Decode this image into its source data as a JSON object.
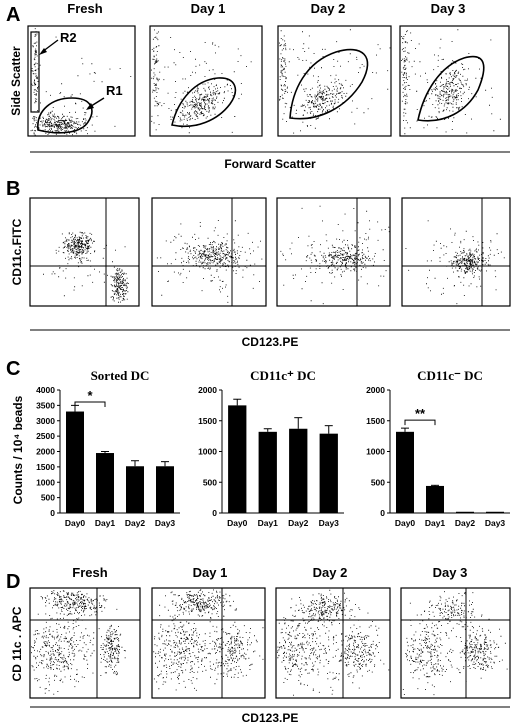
{
  "panels": {
    "A": {
      "label": "A",
      "titles": [
        "Fresh",
        "Day 1",
        "Day 2",
        "Day 3"
      ],
      "ylabel": "Side Scatter",
      "xlabel": "Forward Scatter",
      "annotations": {
        "r1": "R1",
        "r2": "R2"
      }
    },
    "B": {
      "label": "B",
      "ylabel": "CD11c.FITC",
      "xlabel": "CD123.PE"
    },
    "C": {
      "label": "C"
    },
    "D": {
      "label": "D",
      "titles": [
        "Fresh",
        "Day 1",
        "Day 2",
        "Day 3"
      ],
      "ylabel": "CD 11c . APC",
      "xlabel": "CD123.PE"
    }
  },
  "chart_data": [
    {
      "type": "bar",
      "title": "Sorted DC",
      "ylabel": "Counts / 10⁴ beads",
      "categories": [
        "Day0",
        "Day1",
        "Day2",
        "Day3"
      ],
      "values": [
        3300,
        1950,
        1520,
        1520
      ],
      "errors": [
        200,
        50,
        180,
        150
      ],
      "ylim": [
        0,
        4000
      ],
      "yticks": [
        0,
        500,
        1000,
        1500,
        2000,
        2500,
        3000,
        3500,
        4000
      ],
      "significance": {
        "from": 0,
        "to": 1,
        "label": "*"
      }
    },
    {
      "type": "bar",
      "title": "CD11c⁺ DC",
      "categories": [
        "Day0",
        "Day1",
        "Day2",
        "Day3"
      ],
      "values": [
        1750,
        1320,
        1370,
        1290
      ],
      "errors": [
        100,
        50,
        180,
        130
      ],
      "ylim": [
        0,
        2000
      ],
      "yticks": [
        0,
        500,
        1000,
        1500,
        2000
      ]
    },
    {
      "type": "bar",
      "title": "CD11c⁻ DC",
      "categories": [
        "Day0",
        "Day1",
        "Day2",
        "Day3"
      ],
      "values": [
        1320,
        440,
        20,
        20
      ],
      "errors": [
        60,
        10,
        0,
        0
      ],
      "ylim": [
        0,
        2000
      ],
      "yticks": [
        0,
        500,
        1000,
        1500,
        2000
      ],
      "significance": {
        "from": 0,
        "to": 1,
        "label": "**"
      }
    }
  ]
}
